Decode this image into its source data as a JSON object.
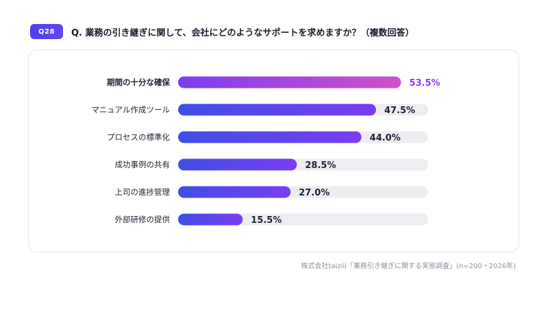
{
  "question": {
    "badge": "Q28",
    "title": "Q. 業務の引き継ぎに関して、会社にどのようなサポートを求めますか？（複数回答）"
  },
  "note": "株式会社taiziii「業務引き継ぎに関する実態調査」(n=200・2026年)",
  "colors": {
    "track": "#ededf2",
    "bar_start": "#3e4fe6",
    "bar_end": "#7c3df0",
    "top_bar_start": "#7a3ff0",
    "top_bar_end": "#d24fc9",
    "top_value": "#8a3ef0",
    "text": "#1f2233"
  },
  "chart_data": {
    "type": "bar",
    "orientation": "horizontal",
    "categories": [
      "期間の十分な確保",
      "マニュアル作成ツール",
      "プロセスの標準化",
      "成功事例の共有",
      "上司の進捗管理",
      "外部研修の提供"
    ],
    "values": [
      53.5,
      47.5,
      44.0,
      28.5,
      27.0,
      15.5
    ],
    "value_labels": [
      "53.5%",
      "47.5%",
      "44.0%",
      "28.5%",
      "27.0%",
      "15.5%"
    ],
    "unit": "%",
    "xlim": [
      0,
      60
    ],
    "grid": false,
    "highlight_index": 0
  }
}
